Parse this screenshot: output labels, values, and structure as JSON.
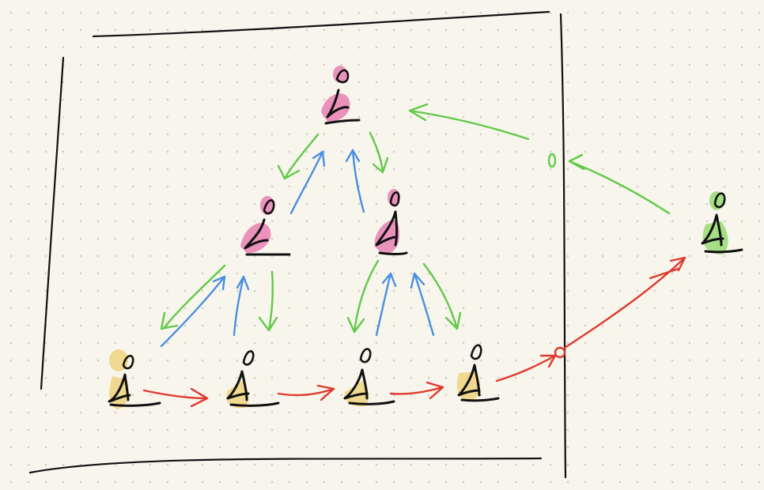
{
  "colors": {
    "background": "#f8f6ec",
    "dots": "#cfcdc4",
    "ink": "#111111",
    "internal_node": "#e887b6",
    "leaf_node": "#f0d68a",
    "external_node": "#9fdc80",
    "green_arrow": "#62c94a",
    "blue_arrow": "#4a8fe0",
    "red_arrow": "#e0392f"
  },
  "diagram": {
    "nodes": [
      {
        "id": "root",
        "kind": "internal"
      },
      {
        "id": "left-child",
        "kind": "internal"
      },
      {
        "id": "right-child",
        "kind": "internal"
      },
      {
        "id": "leaf-1",
        "kind": "leaf"
      },
      {
        "id": "leaf-2",
        "kind": "leaf"
      },
      {
        "id": "leaf-3",
        "kind": "leaf"
      },
      {
        "id": "leaf-4",
        "kind": "leaf"
      },
      {
        "id": "outside",
        "kind": "external"
      }
    ],
    "edges": [
      {
        "from": "root",
        "to": "left-child",
        "color": "green"
      },
      {
        "from": "left-child",
        "to": "root",
        "color": "blue"
      },
      {
        "from": "root",
        "to": "right-child",
        "color": "green"
      },
      {
        "from": "right-child",
        "to": "root",
        "color": "blue"
      },
      {
        "from": "left-child",
        "to": "leaf-1",
        "color": "green"
      },
      {
        "from": "leaf-1",
        "to": "left-child",
        "color": "blue"
      },
      {
        "from": "left-child",
        "to": "leaf-2",
        "color": "green"
      },
      {
        "from": "leaf-2",
        "to": "left-child",
        "color": "blue"
      },
      {
        "from": "right-child",
        "to": "leaf-3",
        "color": "green"
      },
      {
        "from": "leaf-3",
        "to": "right-child",
        "color": "blue"
      },
      {
        "from": "right-child",
        "to": "leaf-4",
        "color": "green"
      },
      {
        "from": "leaf-4",
        "to": "right-child",
        "color": "blue"
      },
      {
        "from": "leaf-1",
        "to": "leaf-2",
        "color": "red"
      },
      {
        "from": "leaf-2",
        "to": "leaf-3",
        "color": "red"
      },
      {
        "from": "leaf-3",
        "to": "leaf-4",
        "color": "red"
      },
      {
        "from": "leaf-4",
        "to": "outside",
        "color": "red"
      },
      {
        "from": "outside",
        "to": "root",
        "color": "green"
      }
    ]
  }
}
